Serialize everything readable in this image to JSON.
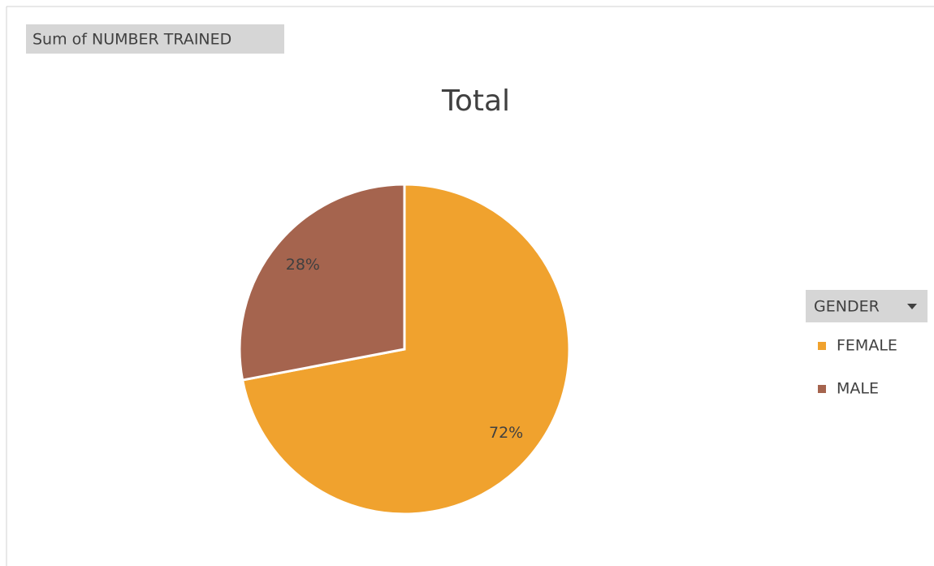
{
  "chart_data": {
    "type": "pie",
    "title": "Total",
    "value_field": "Sum of NUMBER TRAINED",
    "legend_title": "GENDER",
    "categories": [
      "FEMALE",
      "MALE"
    ],
    "values": [
      72,
      28
    ],
    "value_labels": [
      "72%",
      "28%"
    ],
    "colors": [
      "#f0a22e",
      "#a5644e"
    ],
    "legend": "right"
  }
}
